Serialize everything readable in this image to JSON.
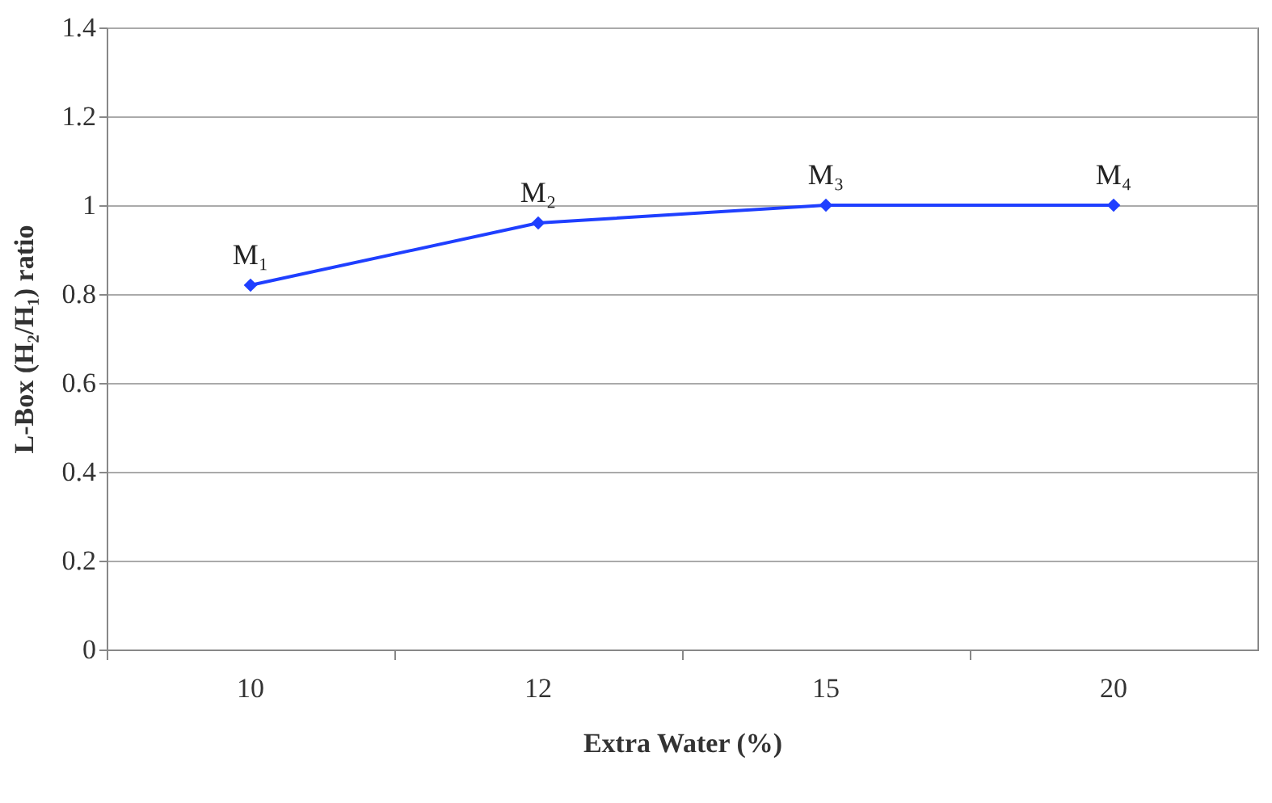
{
  "chart_data": {
    "type": "line",
    "xlabel": "Extra Water (%)",
    "ylabel": "L-Box (H₂/H₁) ratio",
    "categories": [
      "10",
      "12",
      "15",
      "20"
    ],
    "series": [
      {
        "color": "#1f3fff",
        "values": [
          0.82,
          0.96,
          1.0,
          1.0
        ]
      }
    ],
    "ylim": [
      0,
      1.4
    ],
    "yticks": [
      0,
      0.2,
      0.4,
      0.6,
      0.8,
      1,
      1.2,
      1.4
    ],
    "grid": "y",
    "marker": "diamond",
    "line_style": "solid",
    "annotations": [
      {
        "text": "M₁",
        "x": "10",
        "y": 0.82
      },
      {
        "text": "M₂",
        "x": "12",
        "y": 0.96
      },
      {
        "text": "M₃",
        "x": "15",
        "y": 1.0
      },
      {
        "text": "M₄",
        "x": "20",
        "y": 1.0
      }
    ]
  }
}
